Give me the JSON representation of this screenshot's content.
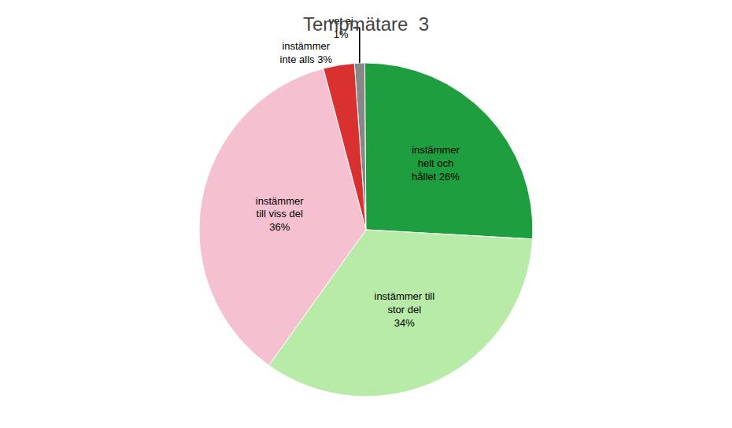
{
  "chart_data": {
    "type": "pie",
    "title": "Tempmätare  3",
    "categories": [
      "vet ej\n1%",
      "instämmer\nhelt och\nhållet 26%",
      "instämmer till\nstor del\n34%",
      "instämmer\ntill viss del\n36%",
      "instämmer\ninte alls 3%"
    ],
    "values": [
      1,
      26,
      34,
      36,
      3
    ],
    "colors": [
      "#888888",
      "#1e9e3e",
      "#b8eaa8",
      "#f5c0d0",
      "#d93030"
    ]
  }
}
